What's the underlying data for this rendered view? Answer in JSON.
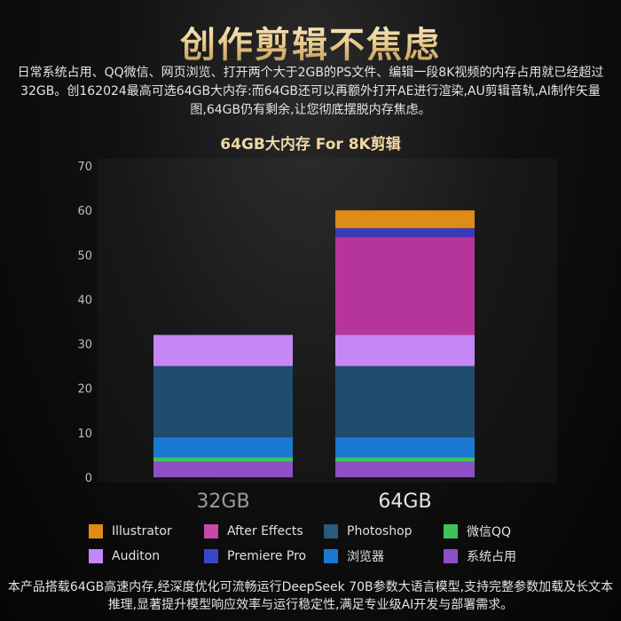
{
  "page": {
    "title": "创作剪辑不焦虑",
    "intro": "日常系统占用、QQ微信、网页浏览、打开两个大于2GB的PS文件、编辑一段8K视频的内存占用就已经超过32GB。创162024最高可选64GB大内存:而64GB还可以再额外打开AE进行渲染,AU剪辑音轨,AI制作矢量图,64GB仍有剩余,让您彻底摆脱内存焦虑。",
    "footer": "本产品搭载64GB高速内存,经深度优化可流畅运行DeepSeek 70B参数大语言模型,支持完整参数加载及长文本推理,显著提升模型响应效率与运行稳定性,满足专业级AI开发与部署需求。"
  },
  "chart_data": {
    "type": "bar",
    "stacked": true,
    "title": "64GB大内存 For 8K剪辑",
    "xlabel": "",
    "ylabel": "",
    "ylim": [
      0,
      70
    ],
    "yticks": [
      "0",
      "10",
      "20",
      "30",
      "40",
      "50",
      "60",
      "70"
    ],
    "grid": false,
    "legend_position": "bottom",
    "categories": [
      "32GB",
      "64GB"
    ],
    "series": [
      {
        "name": "系统占用",
        "color": "#8e4fc7",
        "values": [
          3.5,
          3.5
        ]
      },
      {
        "name": "微信QQ",
        "color": "#3ec25a",
        "values": [
          1,
          1
        ]
      },
      {
        "name": "浏览器",
        "color": "#1a78d0",
        "values": [
          4.5,
          4.5
        ]
      },
      {
        "name": "Photoshop",
        "color": "#1e4d6e",
        "values": [
          16,
          16
        ]
      },
      {
        "name": "Auditon",
        "color": "#c487f5",
        "values": [
          7,
          7
        ]
      },
      {
        "name": "After Effects",
        "color": "#b6359b",
        "values": [
          0,
          22
        ]
      },
      {
        "name": "Premiere Pro",
        "color": "#3a3ab8",
        "values": [
          0,
          2
        ]
      },
      {
        "name": "Illustrator",
        "color": "#e08a18",
        "values": [
          0,
          4
        ]
      }
    ]
  },
  "legend": {
    "items": [
      {
        "label": "Illustrator",
        "color": "#e08a18"
      },
      {
        "label": "After Effects",
        "color": "#c64aa8"
      },
      {
        "label": "Photoshop",
        "color": "#2a5a7e"
      },
      {
        "label": "微信QQ",
        "color": "#3ec25a"
      },
      {
        "label": "Auditon",
        "color": "#c487f5"
      },
      {
        "label": "Premiere Pro",
        "color": "#3b45c9"
      },
      {
        "label": "浏览器",
        "color": "#1a78d0"
      },
      {
        "label": "系统占用",
        "color": "#8e4fc7"
      }
    ]
  }
}
